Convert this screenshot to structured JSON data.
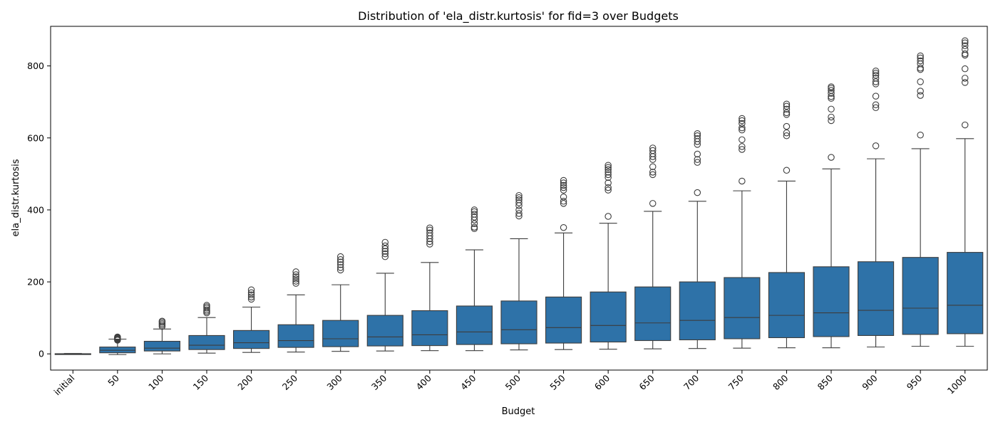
{
  "chart_data": {
    "type": "box",
    "title": "Distribution of 'ela_distr.kurtosis' for fid=3 over Budgets",
    "xlabel": "Budget",
    "ylabel": "ela_distr.kurtosis",
    "ylim": [
      -45,
      910
    ],
    "yticks": [
      0,
      200,
      400,
      600,
      800
    ],
    "box_color": "#2e72a8",
    "line_color": "#3d3d3d",
    "grid": false,
    "categories": [
      "initial",
      "50",
      "100",
      "150",
      "200",
      "250",
      "300",
      "350",
      "400",
      "450",
      "500",
      "550",
      "600",
      "650",
      "700",
      "750",
      "800",
      "850",
      "900",
      "950",
      "1000"
    ],
    "boxes": [
      {
        "whislo": -1,
        "q1": -0.5,
        "med": 0,
        "q3": 0.5,
        "whishi": 1,
        "fliers": []
      },
      {
        "whislo": -2,
        "q1": 3,
        "med": 10,
        "q3": 19,
        "whishi": 41,
        "fliers": [
          38,
          40,
          42,
          44,
          46,
          47
        ]
      },
      {
        "whislo": 0,
        "q1": 8,
        "med": 16,
        "q3": 35,
        "whishi": 69,
        "fliers": [
          76,
          80,
          84,
          88,
          91
        ]
      },
      {
        "whislo": 2,
        "q1": 12,
        "med": 24,
        "q3": 51,
        "whishi": 101,
        "fliers": [
          114,
          118,
          122,
          127,
          131,
          135
        ]
      },
      {
        "whislo": 4,
        "q1": 15,
        "med": 31,
        "q3": 65,
        "whishi": 130,
        "fliers": [
          152,
          158,
          164,
          170,
          178
        ]
      },
      {
        "whislo": 5,
        "q1": 18,
        "med": 37,
        "q3": 81,
        "whishi": 164,
        "fliers": [
          196,
          202,
          208,
          214,
          220,
          228
        ]
      },
      {
        "whislo": 7,
        "q1": 20,
        "med": 42,
        "q3": 93,
        "whishi": 192,
        "fliers": [
          233,
          240,
          248,
          255,
          262,
          270
        ]
      },
      {
        "whislo": 8,
        "q1": 22,
        "med": 47,
        "q3": 107,
        "whishi": 224,
        "fliers": [
          270,
          278,
          285,
          292,
          300,
          310
        ]
      },
      {
        "whislo": 9,
        "q1": 23,
        "med": 53,
        "q3": 120,
        "whishi": 254,
        "fliers": [
          305,
          312,
          320,
          328,
          336,
          344,
          350
        ]
      },
      {
        "whislo": 9,
        "q1": 26,
        "med": 61,
        "q3": 133,
        "whishi": 289,
        "fliers": [
          348,
          352,
          362,
          372,
          380,
          388,
          395,
          400
        ]
      },
      {
        "whislo": 11,
        "q1": 28,
        "med": 67,
        "q3": 147,
        "whishi": 320,
        "fliers": [
          383,
          390,
          400,
          412,
          420,
          428,
          434,
          440
        ]
      },
      {
        "whislo": 12,
        "q1": 30,
        "med": 73,
        "q3": 158,
        "whishi": 336,
        "fliers": [
          351,
          418,
          424,
          436,
          455,
          462,
          468,
          475,
          482
        ]
      },
      {
        "whislo": 13,
        "q1": 33,
        "med": 79,
        "q3": 172,
        "whishi": 363,
        "fliers": [
          382,
          455,
          462,
          475,
          490,
          498,
          505,
          512,
          518,
          524
        ]
      },
      {
        "whislo": 14,
        "q1": 37,
        "med": 86,
        "q3": 186,
        "whishi": 396,
        "fliers": [
          418,
          498,
          505,
          520,
          540,
          548,
          556,
          565,
          572
        ]
      },
      {
        "whislo": 15,
        "q1": 39,
        "med": 93,
        "q3": 200,
        "whishi": 424,
        "fliers": [
          448,
          532,
          540,
          555,
          582,
          590,
          598,
          606,
          612
        ]
      },
      {
        "whislo": 16,
        "q1": 42,
        "med": 101,
        "q3": 212,
        "whishi": 453,
        "fliers": [
          480,
          568,
          576,
          595,
          622,
          628,
          640,
          648,
          654
        ]
      },
      {
        "whislo": 17,
        "q1": 45,
        "med": 107,
        "q3": 226,
        "whishi": 480,
        "fliers": [
          510,
          606,
          614,
          632,
          665,
          670,
          680,
          688,
          694
        ]
      },
      {
        "whislo": 17,
        "q1": 48,
        "med": 114,
        "q3": 242,
        "whishi": 514,
        "fliers": [
          546,
          648,
          658,
          680,
          710,
          715,
          724,
          732,
          738,
          742
        ]
      },
      {
        "whislo": 19,
        "q1": 51,
        "med": 121,
        "q3": 256,
        "whishi": 542,
        "fliers": [
          578,
          684,
          692,
          716,
          750,
          756,
          766,
          774,
          780,
          786
        ]
      },
      {
        "whislo": 21,
        "q1": 54,
        "med": 127,
        "q3": 268,
        "whishi": 570,
        "fliers": [
          608,
          718,
          730,
          756,
          790,
          794,
          806,
          814,
          822,
          828
        ]
      },
      {
        "whislo": 21,
        "q1": 56,
        "med": 135,
        "q3": 282,
        "whishi": 598,
        "fliers": [
          636,
          754,
          766,
          792,
          830,
          834,
          846,
          856,
          864,
          870
        ]
      }
    ]
  }
}
